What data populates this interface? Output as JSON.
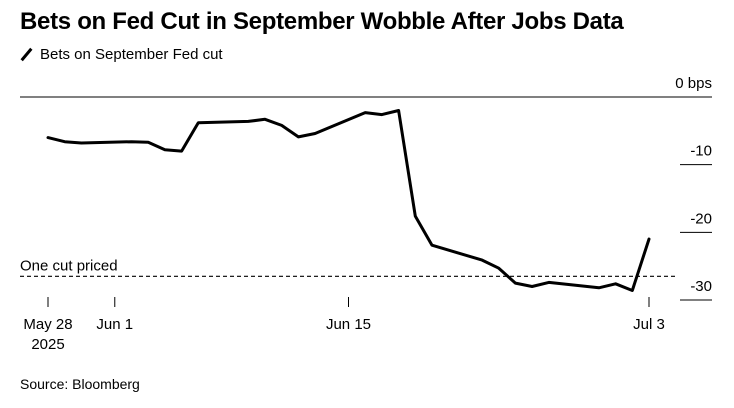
{
  "source": "Source: Bloomberg",
  "chart_data": {
    "type": "line",
    "title": "Bets on Fed Cut in September Wobble After Jobs Data",
    "legend": [
      "Bets on September Fed cut"
    ],
    "legend_position": "top-left",
    "y_unit": "bps",
    "ylim": [
      -32,
      0
    ],
    "yticks": [
      0,
      -10,
      -20,
      -30
    ],
    "ytick_labels": [
      "0 bps",
      "-10",
      "-20",
      "-30"
    ],
    "xlim": [
      "2025-05-28",
      "2025-07-03"
    ],
    "xticks": [
      "2025-05-28",
      "2025-06-01",
      "2025-06-15",
      "2025-07-03"
    ],
    "xtick_labels": [
      "May 28",
      "Jun 1",
      "Jun 15",
      "Jul 3"
    ],
    "xtick_sublabels": [
      "2025",
      "",
      "",
      ""
    ],
    "grid": false,
    "reference_line": {
      "value": -26.5,
      "label": "One cut priced",
      "style": "dashed"
    },
    "series": [
      {
        "name": "Bets on September Fed cut",
        "color": "#000000",
        "x": [
          "2025-05-28",
          "2025-05-29",
          "2025-05-30",
          "2025-06-02",
          "2025-06-03",
          "2025-06-04",
          "2025-06-05",
          "2025-06-06",
          "2025-06-09",
          "2025-06-10",
          "2025-06-11",
          "2025-06-12",
          "2025-06-13",
          "2025-06-16",
          "2025-06-17",
          "2025-06-18",
          "2025-06-19",
          "2025-06-20",
          "2025-06-23",
          "2025-06-24",
          "2025-06-25",
          "2025-06-26",
          "2025-06-27",
          "2025-06-30",
          "2025-07-01",
          "2025-07-02",
          "2025-07-03"
        ],
        "values": [
          -6,
          -6.6,
          -6.8,
          -6.6,
          -6.7,
          -7.8,
          -8.0,
          -3.8,
          -3.6,
          -3.3,
          -4.2,
          -5.9,
          -5.4,
          -2.3,
          -2.6,
          -2.0,
          -17.6,
          -21.9,
          -24.1,
          -25.3,
          -27.5,
          -28.0,
          -27.4,
          -28.2,
          -27.6,
          -28.6,
          -21.0
        ]
      }
    ]
  }
}
